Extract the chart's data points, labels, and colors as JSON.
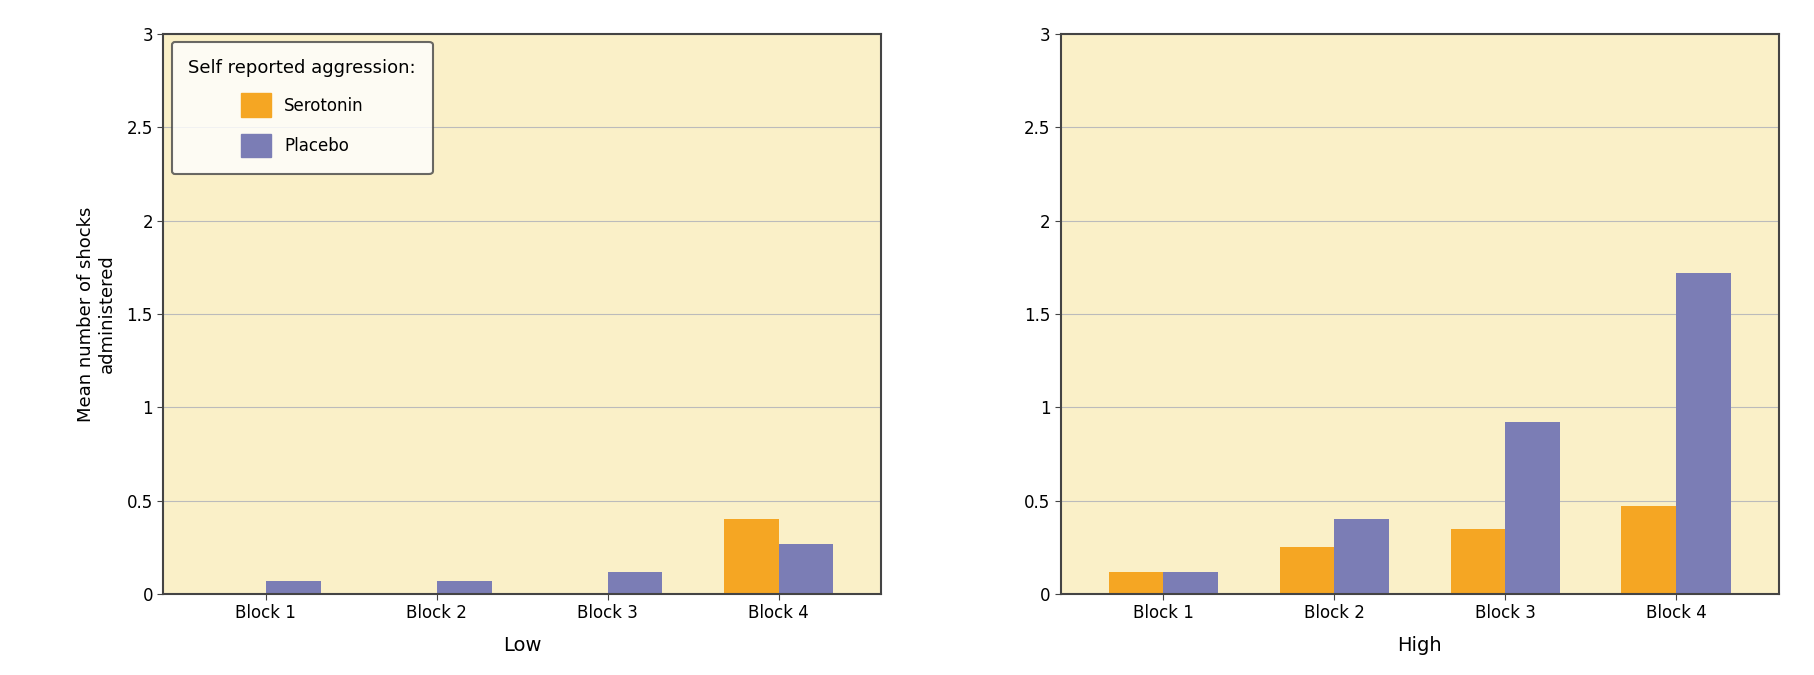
{
  "panels": [
    {
      "title": "Low",
      "serotonin": [
        0.0,
        0.0,
        0.0,
        0.4
      ],
      "placebo": [
        0.07,
        0.07,
        0.12,
        0.27
      ]
    },
    {
      "title": "High",
      "serotonin": [
        0.12,
        0.25,
        0.35,
        0.47
      ],
      "placebo": [
        0.12,
        0.4,
        0.92,
        1.72
      ]
    }
  ],
  "categories": [
    "Block 1",
    "Block 2",
    "Block 3",
    "Block 4"
  ],
  "ylabel": "Mean number of shocks\nadministered",
  "ylim": [
    0,
    3
  ],
  "yticks": [
    0,
    0.5,
    1,
    1.5,
    2,
    2.5,
    3
  ],
  "ytick_labels": [
    "0",
    "0.5",
    "1",
    "1.5",
    "2",
    "2.5",
    "3"
  ],
  "serotonin_color": "#F5A623",
  "placebo_color": "#7B7DB5",
  "background_color": "#FAF0C8",
  "figure_bg": "#FFFFFF",
  "legend_title": "Self reported aggression:",
  "legend_labels": [
    "Serotonin",
    "Placebo"
  ],
  "bar_width": 0.32,
  "grid_color": "#BBBBBB",
  "spine_color": "#444444",
  "fontsize_axis_label": 13,
  "fontsize_tick": 12,
  "fontsize_xlabel": 14,
  "fontsize_legend_title": 13,
  "fontsize_legend": 12
}
